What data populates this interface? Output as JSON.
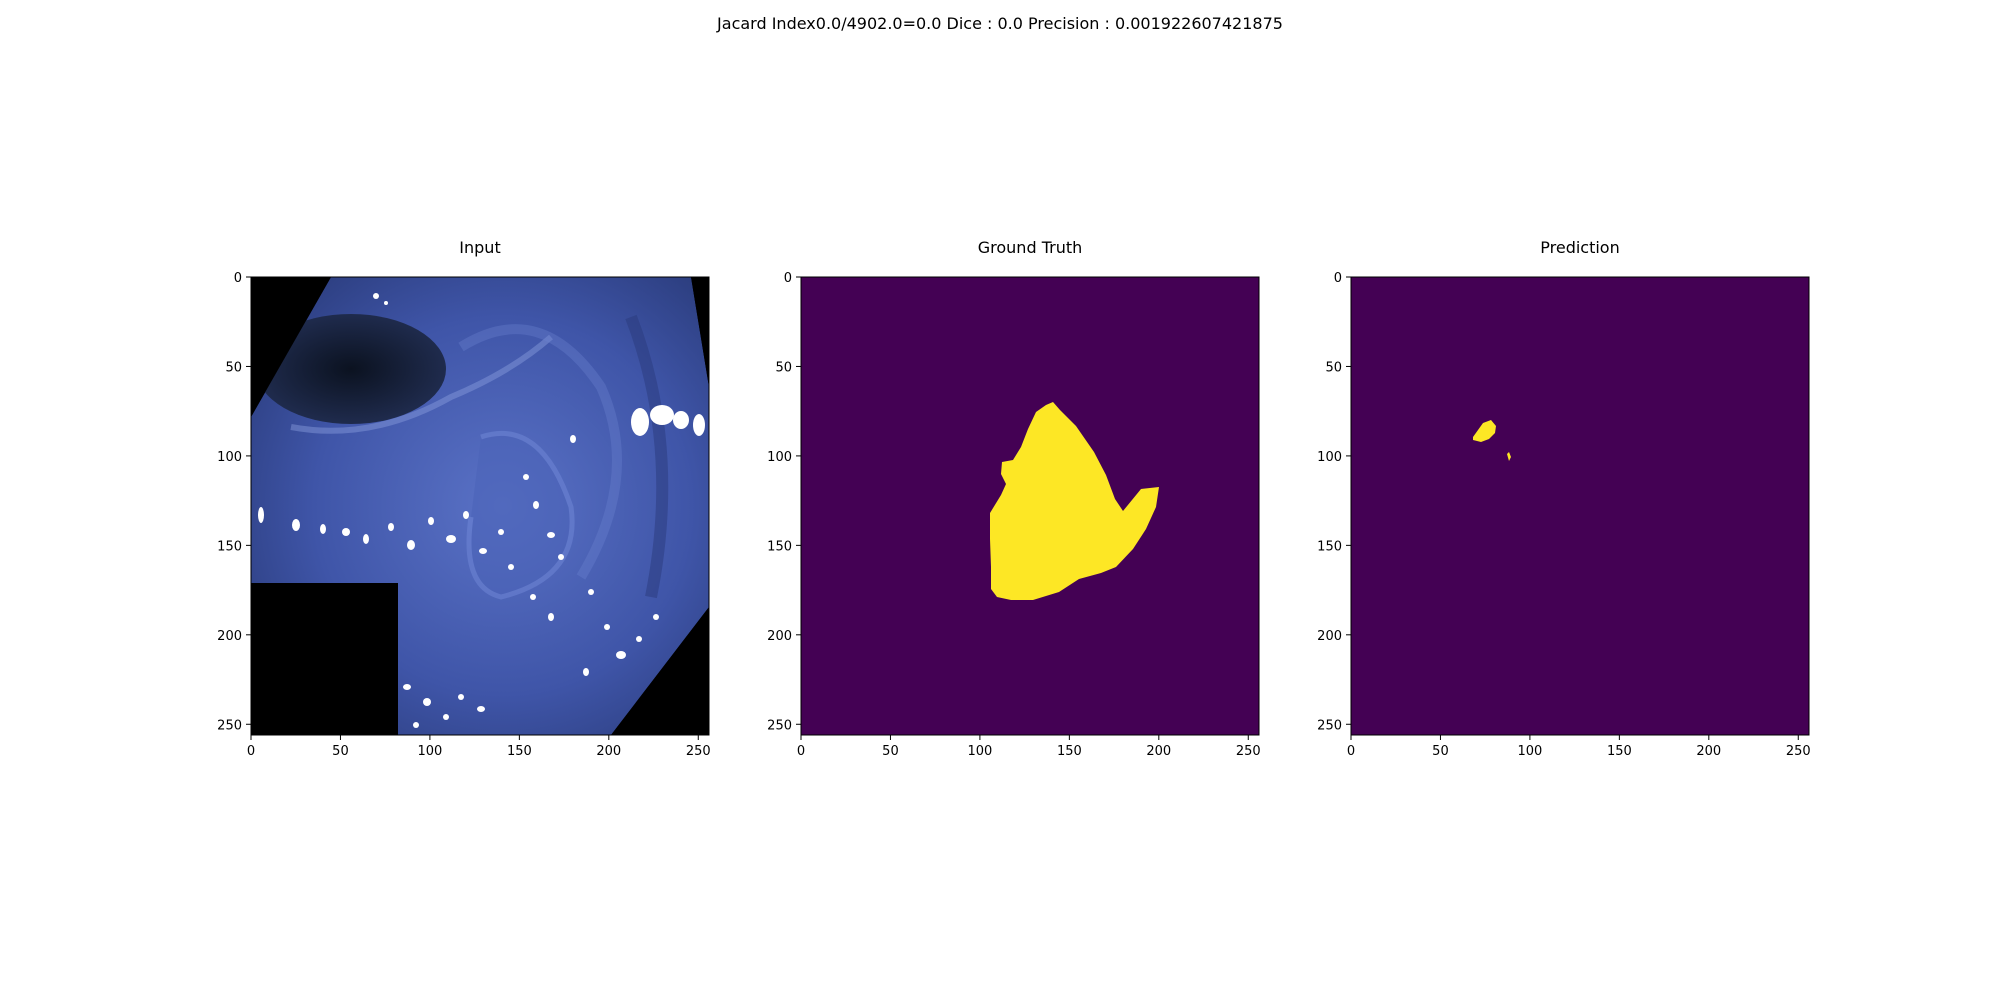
{
  "figure": {
    "suptitle": "Jacard Index0.0/4902.0=0.0 Dice : 0.0 Precision : 0.001922607421875"
  },
  "axes": {
    "image_size": 256,
    "x_ticks": [
      0,
      50,
      100,
      150,
      200,
      250
    ],
    "y_ticks": [
      0,
      50,
      100,
      150,
      200,
      250
    ]
  },
  "panels": [
    {
      "id": "input",
      "title": "Input",
      "kind": "rgb-image"
    },
    {
      "id": "gt",
      "title": "Ground Truth",
      "kind": "mask"
    },
    {
      "id": "pred",
      "title": "Prediction",
      "kind": "mask"
    }
  ],
  "colors": {
    "mask_background": "#440154",
    "mask_foreground": "#fde725",
    "image_black": "#000000",
    "tissue_blue": "#4a5fb4"
  }
}
